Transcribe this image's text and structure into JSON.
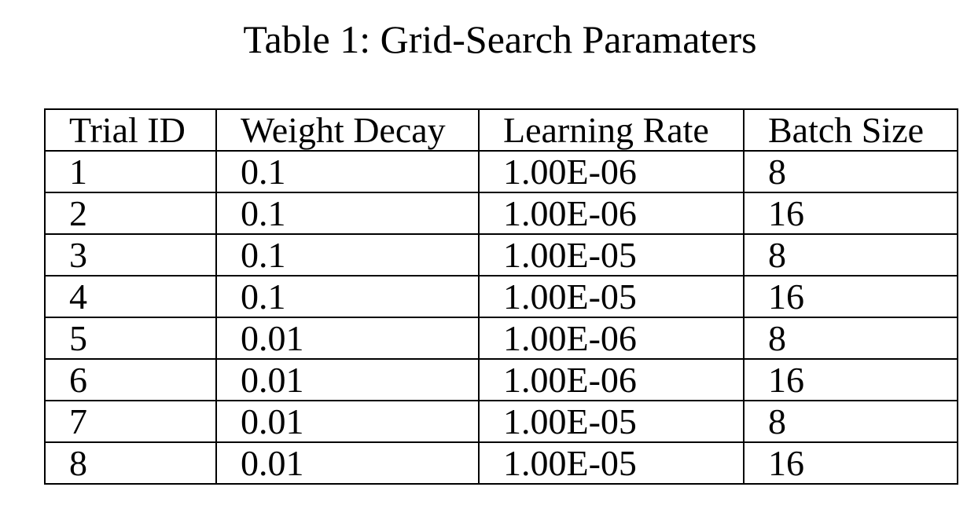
{
  "caption": "Table 1: Grid-Search Paramaters",
  "table": {
    "headers": [
      "Trial ID",
      "Weight Decay",
      "Learning Rate",
      "Batch Size"
    ],
    "rows": [
      [
        "1",
        "0.1",
        "1.00E-06",
        "8"
      ],
      [
        "2",
        "0.1",
        "1.00E-06",
        "16"
      ],
      [
        "3",
        "0.1",
        "1.00E-05",
        "8"
      ],
      [
        "4",
        "0.1",
        "1.00E-05",
        "16"
      ],
      [
        "5",
        "0.01",
        "1.00E-06",
        "8"
      ],
      [
        "6",
        "0.01",
        "1.00E-06",
        "16"
      ],
      [
        "7",
        "0.01",
        "1.00E-05",
        "8"
      ],
      [
        "8",
        "0.01",
        "1.00E-05",
        "16"
      ]
    ]
  }
}
